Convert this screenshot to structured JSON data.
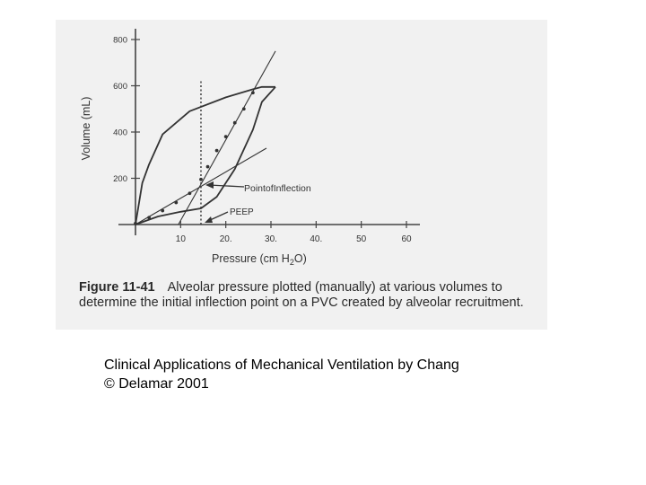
{
  "chart_data": {
    "type": "line",
    "title": "",
    "xlabel": "Pressure (cm H2O)",
    "ylabel": "Volume (mL)",
    "xlim": [
      0,
      60
    ],
    "ylim": [
      0,
      800
    ],
    "x_ticks": [
      "10",
      "20.",
      "30.",
      "40.",
      "50",
      "60"
    ],
    "y_ticks": [
      "200",
      "400",
      "600",
      "800"
    ],
    "series": [
      {
        "x": [
          0,
          1.5,
          3,
          6,
          12,
          20,
          26,
          28,
          31
        ],
        "y": [
          0,
          180,
          260,
          390,
          490,
          550,
          585,
          595,
          595
        ]
      },
      {
        "x": [
          0,
          5,
          10,
          14.5,
          18,
          22,
          26,
          28,
          31
        ],
        "y": [
          0,
          35,
          55,
          70,
          120,
          240,
          410,
          530,
          595
        ]
      },
      {
        "x": [
          0,
          3,
          6,
          9,
          12,
          14.5,
          16,
          18,
          20,
          22,
          24,
          26
        ],
        "y": [
          5,
          30,
          60,
          95,
          135,
          195,
          250,
          320,
          380,
          440,
          500,
          570
        ]
      }
    ],
    "reference_lines": [
      {
        "x": [
          0,
          29
        ],
        "y": [
          0,
          330
        ]
      },
      {
        "x": [
          9.5,
          31
        ],
        "y": [
          0,
          750
        ]
      },
      {
        "x": [
          14.5,
          14.5
        ],
        "y": [
          0,
          620
        ]
      }
    ],
    "annotations": [
      "PointofInflection",
      "PEEP"
    ]
  },
  "caption": {
    "figure_number": "Figure 11-41",
    "text": "Alveolar pressure plotted (manually) at various volumes to determine the initial inflection point on a PVC created by alveolar recruitment."
  },
  "credit": {
    "line1": "Clinical Applications of Mechanical Ventilation by Chang",
    "line2": "© Delamar 2001"
  },
  "colors": {
    "ink": "#333333",
    "scan_bg": "#f1f1f1"
  }
}
